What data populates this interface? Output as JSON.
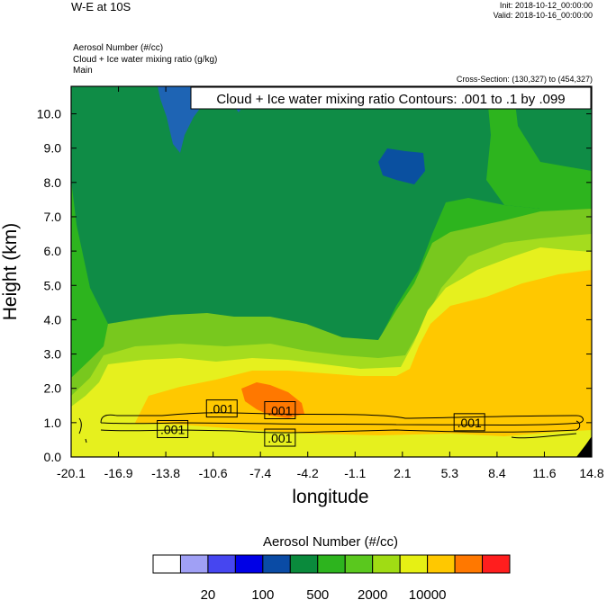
{
  "header": {
    "title": "W-E at 10S",
    "init": "Init: 2018-10-12_00:00:00",
    "valid": "Valid: 2018-10-16_00:00:00",
    "field1": "Aerosol Number   (#/cc)",
    "field2": "Cloud + Ice water mixing ratio   (g/kg)",
    "field3": "Main",
    "cross_section": "Cross-Section: (130,327) to (454,327)",
    "contour_info": "Cloud + Ice water mixing ratio Contours: .001 to .1 by .099"
  },
  "chart_data": {
    "type": "heatmap",
    "xlabel": "longitude",
    "ylabel": "Height (km)",
    "xlim": [
      -20.1,
      14.8
    ],
    "ylim": [
      0.0,
      10.8
    ],
    "x_ticks": [
      "-20.1",
      "-16.9",
      "-13.8",
      "-10.6",
      "-7.4",
      "-4.2",
      "-1.1",
      "2.1",
      "5.3",
      "8.4",
      "11.6",
      "14.8"
    ],
    "y_ticks": [
      "0.0",
      "1.0",
      "2.0",
      "3.0",
      "4.0",
      "5.0",
      "6.0",
      "7.0",
      "8.0",
      "9.0",
      "10.0"
    ],
    "contour_labels": [
      {
        "text": ".001",
        "x": -10.0,
        "y": 1.4
      },
      {
        "text": ".001",
        "x": -6.1,
        "y": 1.35
      },
      {
        "text": ".001",
        "x": -13.3,
        "y": 0.8
      },
      {
        "text": ".001",
        "x": -6.1,
        "y": 0.55
      },
      {
        "text": ".001",
        "x": 6.6,
        "y": 1.0
      }
    ],
    "colorbar": {
      "title": "Aerosol Number  (#/cc)",
      "colors": [
        "#ffffff",
        "#a0a0f5",
        "#4646f0",
        "#0000e6",
        "#0a4ba5",
        "#0a8a3c",
        "#2db41e",
        "#5ac81e",
        "#a0dc14",
        "#e6f014",
        "#ffc800",
        "#ff7800",
        "#ff1e1e"
      ],
      "tick_labels": [
        "20",
        "100",
        "500",
        "2000",
        "10000"
      ]
    },
    "colors": {
      "dark_green": "#0f8c46",
      "green": "#2db41e",
      "light_green": "#78c81e",
      "lime": "#a5dc1e",
      "yellow": "#e6f01e",
      "gold": "#ffc800",
      "orange": "#ff7800",
      "blue": "#1e64b4",
      "navy": "#0a50a0"
    }
  }
}
